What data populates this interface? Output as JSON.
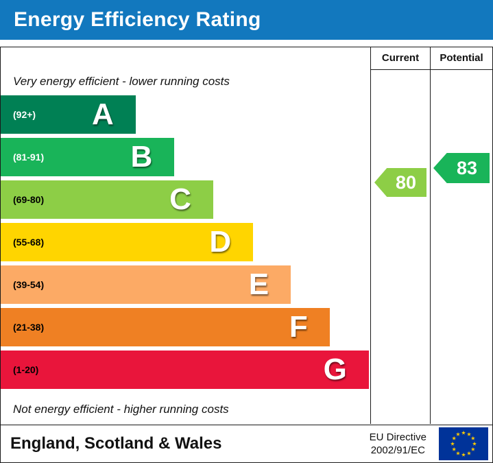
{
  "header": {
    "title": "Energy Efficiency Rating",
    "bg_color": "#1278be"
  },
  "columns": {
    "current_label": "Current",
    "potential_label": "Potential"
  },
  "top_note": "Very energy efficient - lower running costs",
  "bottom_note": "Not energy efficient - higher running costs",
  "bands": [
    {
      "letter": "A",
      "range": "(92+)",
      "color": "#008054",
      "text_color": "#ffffff",
      "width_pct": 36.5
    },
    {
      "letter": "B",
      "range": "(81-91)",
      "color": "#19b459",
      "text_color": "#ffffff",
      "width_pct": 47
    },
    {
      "letter": "C",
      "range": "(69-80)",
      "color": "#8dce46",
      "text_color": "#000000",
      "width_pct": 57.5
    },
    {
      "letter": "D",
      "range": "(55-68)",
      "color": "#ffd500",
      "text_color": "#000000",
      "width_pct": 68.3
    },
    {
      "letter": "E",
      "range": "(39-54)",
      "color": "#fcaa65",
      "text_color": "#000000",
      "width_pct": 78.5
    },
    {
      "letter": "F",
      "range": "(21-38)",
      "color": "#ef8023",
      "text_color": "#000000",
      "width_pct": 89
    },
    {
      "letter": "G",
      "range": "(1-20)",
      "color": "#e9153b",
      "text_color": "#000000",
      "width_pct": 99.6
    }
  ],
  "ratings": {
    "current": {
      "value": "80",
      "band": "C",
      "color": "#8dce46"
    },
    "potential": {
      "value": "83",
      "band": "B",
      "color": "#19b459"
    }
  },
  "footer": {
    "region": "England, Scotland & Wales",
    "directive_line1": "EU Directive",
    "directive_line2": "2002/91/EC",
    "flag_icon": "eu-flag"
  },
  "chart_data": {
    "type": "bar",
    "title": "Energy Efficiency Rating",
    "categories": [
      "A",
      "B",
      "C",
      "D",
      "E",
      "F",
      "G"
    ],
    "ranges": [
      "92+",
      "81-91",
      "69-80",
      "55-68",
      "39-54",
      "21-38",
      "1-20"
    ],
    "colors": [
      "#008054",
      "#19b459",
      "#8dce46",
      "#ffd500",
      "#fcaa65",
      "#ef8023",
      "#e9153b"
    ],
    "bar_width_pct": [
      36.5,
      47,
      57.5,
      68.3,
      78.5,
      89,
      99.6
    ],
    "series": [
      {
        "name": "Current",
        "value": 80,
        "band": "C"
      },
      {
        "name": "Potential",
        "value": 83,
        "band": "B"
      }
    ],
    "annotations": [
      "Very energy efficient - lower running costs",
      "Not energy efficient - higher running costs"
    ],
    "region": "England, Scotland & Wales",
    "directive": "EU Directive 2002/91/EC"
  }
}
